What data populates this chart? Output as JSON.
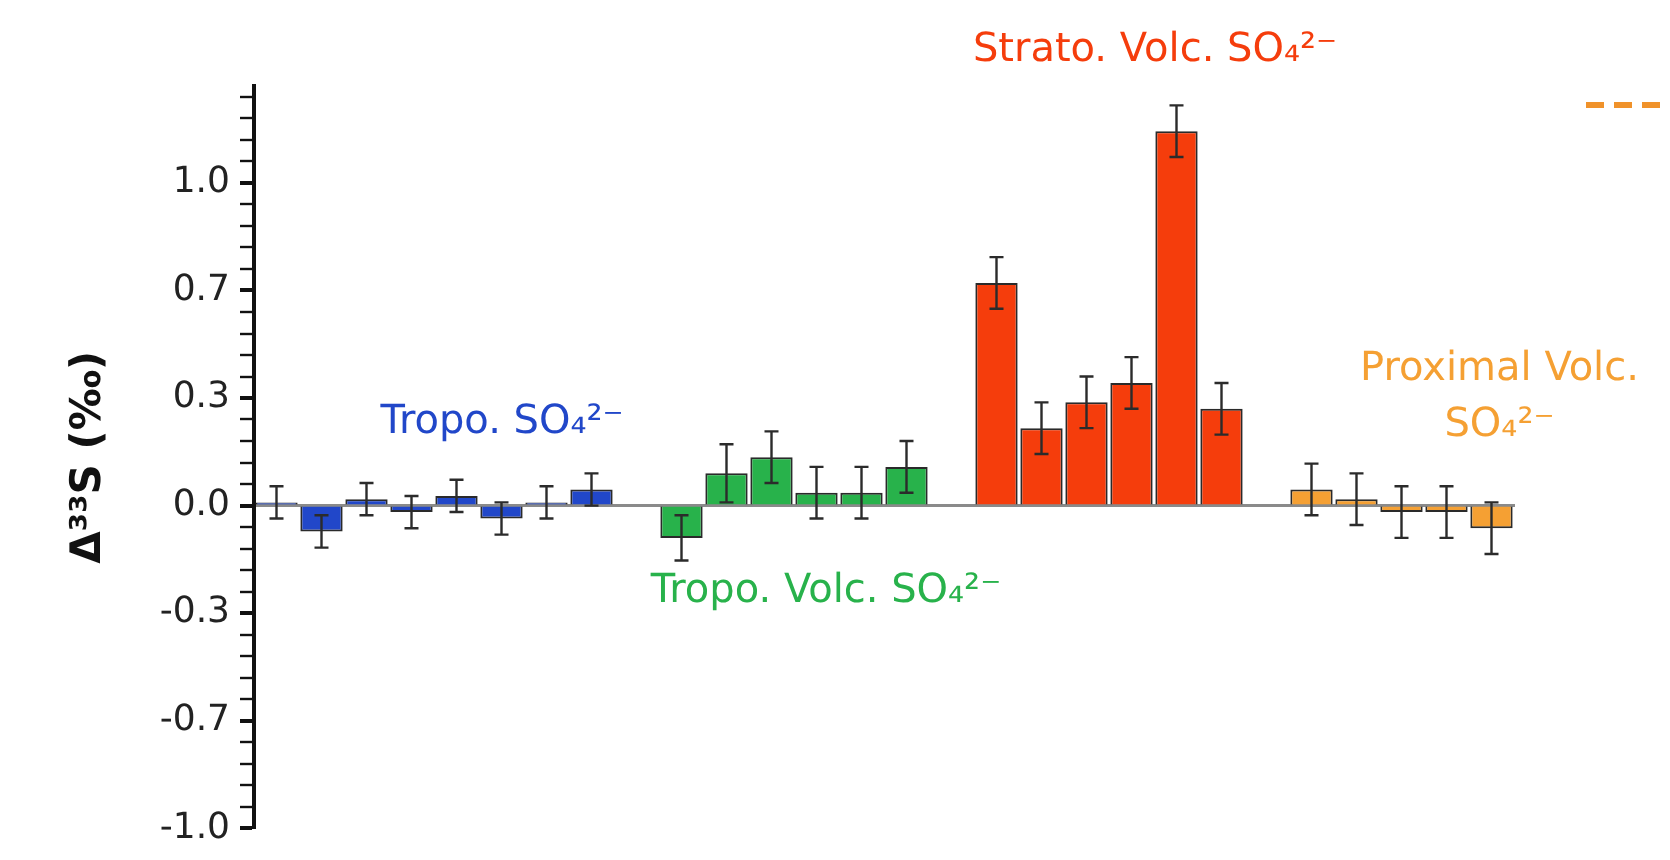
{
  "chart_data": {
    "type": "bar",
    "ylabel": "Δ³³S (‰)",
    "tick_labels": "y",
    "categories": [
      null,
      null,
      null,
      null,
      null,
      null,
      null,
      null,
      null,
      null,
      null,
      null,
      null,
      null,
      null,
      null,
      null,
      null,
      null,
      null,
      null,
      null,
      null,
      null,
      null,
      null,
      null,
      null
    ],
    "series": [
      {
        "name": "Tropo. SO₄²⁻",
        "color": "#2147c9",
        "values": [
          0.01,
          -0.08,
          0.02,
          -0.02,
          0.03,
          -0.04,
          0.01,
          0.05,
          null,
          null,
          null,
          null,
          null,
          null,
          null,
          null,
          null,
          null,
          null,
          null,
          null,
          null,
          null,
          null,
          null,
          null,
          null,
          null
        ],
        "errors": [
          0.05,
          0.05,
          0.05,
          0.05,
          0.05,
          0.05,
          0.05,
          0.05,
          null,
          null,
          null,
          null,
          null,
          null,
          null,
          null,
          null,
          null,
          null,
          null,
          null,
          null,
          null,
          null,
          null,
          null,
          null,
          null
        ]
      },
      {
        "name": "Tropo. Volc. SO₄²⁻",
        "color": "#28b24b",
        "values": [
          null,
          null,
          null,
          null,
          null,
          null,
          null,
          null,
          null,
          -0.1,
          0.1,
          0.15,
          0.04,
          0.04,
          0.12,
          null,
          null,
          null,
          null,
          null,
          null,
          null,
          null,
          null,
          null,
          null,
          null,
          null
        ],
        "errors": [
          null,
          null,
          null,
          null,
          null,
          null,
          null,
          null,
          null,
          0.07,
          0.09,
          0.08,
          0.08,
          0.08,
          0.08,
          null,
          null,
          null,
          null,
          null,
          null,
          null,
          null,
          null,
          null,
          null,
          null,
          null
        ]
      },
      {
        "name": "Strato. Volc. SO₄²⁻",
        "color": "#f53d0c",
        "values": [
          null,
          null,
          null,
          null,
          null,
          null,
          null,
          null,
          null,
          null,
          null,
          null,
          null,
          null,
          null,
          null,
          0.69,
          0.24,
          0.32,
          0.38,
          1.16,
          0.3,
          null,
          null,
          null,
          null,
          null,
          null
        ],
        "errors": [
          null,
          null,
          null,
          null,
          null,
          null,
          null,
          null,
          null,
          null,
          null,
          null,
          null,
          null,
          null,
          null,
          0.08,
          0.08,
          0.08,
          0.08,
          0.08,
          0.08,
          null,
          null,
          null,
          null,
          null,
          null
        ]
      },
      {
        "name": "Proximal Volc. SO₄²⁻",
        "color": "#f5a033",
        "values": [
          null,
          null,
          null,
          null,
          null,
          null,
          null,
          null,
          null,
          null,
          null,
          null,
          null,
          null,
          null,
          null,
          null,
          null,
          null,
          null,
          null,
          null,
          null,
          0.05,
          0.02,
          -0.02,
          -0.02,
          -0.07
        ],
        "errors": [
          null,
          null,
          null,
          null,
          null,
          null,
          null,
          null,
          null,
          null,
          null,
          null,
          null,
          null,
          null,
          null,
          null,
          null,
          null,
          null,
          null,
          null,
          null,
          0.08,
          0.08,
          0.08,
          0.08,
          0.08
        ]
      }
    ],
    "ylim": [
      -1.0,
      1.3
    ],
    "yticks": [
      {
        "value": -1,
        "label": "-1.0"
      },
      {
        "value": -0.933,
        "label": null
      },
      {
        "value": -0.867,
        "label": null
      },
      {
        "value": -0.8,
        "label": null
      },
      {
        "value": -0.733,
        "label": null
      },
      {
        "value": -0.667,
        "label": "-0.7"
      },
      {
        "value": -0.6,
        "label": null
      },
      {
        "value": -0.533,
        "label": null
      },
      {
        "value": -0.467,
        "label": null
      },
      {
        "value": -0.4,
        "label": null
      },
      {
        "value": -0.333,
        "label": "-0.3"
      },
      {
        "value": -0.267,
        "label": null
      },
      {
        "value": -0.2,
        "label": null
      },
      {
        "value": -0.133,
        "label": null
      },
      {
        "value": -0.067,
        "label": null
      },
      {
        "value": 0,
        "label": "0.0"
      },
      {
        "value": 0.067,
        "label": null
      },
      {
        "value": 0.133,
        "label": null
      },
      {
        "value": 0.2,
        "label": null
      },
      {
        "value": 0.267,
        "label": null
      },
      {
        "value": 0.333,
        "label": "0.3"
      },
      {
        "value": 0.4,
        "label": null
      },
      {
        "value": 0.467,
        "label": null
      },
      {
        "value": 0.533,
        "label": null
      },
      {
        "value": 0.6,
        "label": null
      },
      {
        "value": 0.667,
        "label": "0.7"
      },
      {
        "value": 0.733,
        "label": null
      },
      {
        "value": 0.8,
        "label": null
      },
      {
        "value": 0.867,
        "label": null
      },
      {
        "value": 0.933,
        "label": null
      },
      {
        "value": 1,
        "label": "1.0"
      },
      {
        "value": 1.067,
        "label": null
      },
      {
        "value": 1.133,
        "label": null
      },
      {
        "value": 1.2,
        "label": null
      },
      {
        "value": 1.267,
        "label": null
      }
    ]
  }
}
